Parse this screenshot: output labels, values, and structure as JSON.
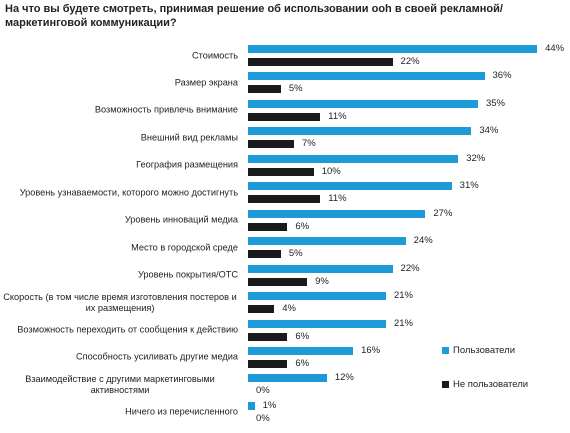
{
  "chart_data": {
    "type": "bar",
    "title": "На что вы будете смотреть, принимая решение об использовании ooh в своей рекламной/ маркетинговой коммуникации?",
    "categories": [
      "Стоимость",
      "Размер экрана",
      "Возможность привлечь внимание",
      "Внешний вид рекламы",
      "География размещения",
      "Уровень узнаваемости, которого можно достигнуть",
      "Уровень инноваций медиа",
      "Место в городской среде",
      "Уровень покрытия/OTC",
      "Скорость (в том числе время изготовления постеров и их размещения)",
      "Возможность переходить от сообщения к действию",
      "Способность усиливать другие медиа",
      "Взаимодействие с другими маркетинговыми активностями",
      "Ничего из перечисленного"
    ],
    "series": [
      {
        "name": "Пользователи",
        "color": "#1c9bd7",
        "values": [
          44,
          36,
          35,
          34,
          32,
          31,
          27,
          24,
          22,
          21,
          21,
          16,
          12,
          1
        ],
        "value_labels": [
          "44%",
          "36%",
          "35%",
          "34%",
          "32%",
          "31%",
          "27%",
          "24%",
          "22%",
          "21%",
          "21%",
          "16%",
          "12%",
          "1%"
        ]
      },
      {
        "name": "Не пользователи",
        "color": "#1a1a1a",
        "values": [
          22,
          5,
          11,
          7,
          10,
          11,
          6,
          5,
          9,
          4,
          6,
          6,
          0,
          0
        ],
        "value_labels": [
          "22%",
          "5%",
          "11%",
          "7%",
          "10%",
          "11%",
          "6%",
          "5%",
          "9%",
          "4%",
          "6%",
          "6%",
          "0%",
          "0%"
        ]
      }
    ],
    "legend": "right"
  }
}
